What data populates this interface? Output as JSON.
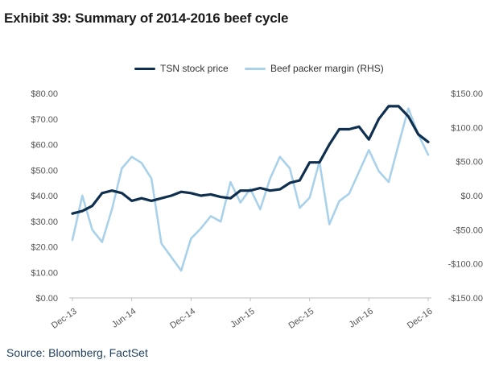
{
  "title": "Exhibit 39: Summary of 2014-2016 beef cycle",
  "source": "Source: Bloomberg, FactSet",
  "chart_data": {
    "type": "line",
    "x": [
      "Dec-13",
      "Jan-14",
      "Feb-14",
      "Mar-14",
      "Apr-14",
      "May-14",
      "Jun-14",
      "Jul-14",
      "Aug-14",
      "Sep-14",
      "Oct-14",
      "Nov-14",
      "Dec-14",
      "Jan-15",
      "Feb-15",
      "Mar-15",
      "Apr-15",
      "May-15",
      "Jun-15",
      "Jul-15",
      "Aug-15",
      "Sep-15",
      "Oct-15",
      "Nov-15",
      "Dec-15",
      "Jan-16",
      "Feb-16",
      "Mar-16",
      "Apr-16",
      "May-16",
      "Jun-16",
      "Jul-16",
      "Aug-16",
      "Sep-16",
      "Oct-16",
      "Nov-16",
      "Dec-16"
    ],
    "xticks": [
      "Dec-13",
      "Jun-14",
      "Dec-14",
      "Jun-15",
      "Dec-15",
      "Jun-16",
      "Dec-16"
    ],
    "series": [
      {
        "name": "TSN stock price",
        "axis": "left",
        "color": "#0f2f4f",
        "values": [
          33,
          34,
          36,
          41,
          42,
          41,
          38,
          39,
          38,
          39,
          40,
          41.5,
          41,
          40,
          40.5,
          39.5,
          39,
          42,
          42,
          43,
          42,
          42.5,
          45,
          46,
          53,
          53,
          60,
          66,
          66,
          67,
          62,
          70,
          75,
          75,
          71,
          64,
          61
        ]
      },
      {
        "name": "Beef packer margin (RHS)",
        "axis": "right",
        "color": "#a9d2ea",
        "values": [
          -65,
          0,
          -50,
          -68,
          -20,
          40,
          57,
          48,
          25,
          -70,
          -90,
          -110,
          -63,
          -48,
          -30,
          -38,
          20,
          -10,
          10,
          -20,
          25,
          57,
          40,
          -18,
          -3,
          50,
          -42,
          -8,
          3,
          35,
          67,
          36,
          20,
          75,
          128,
          90,
          60
        ]
      }
    ],
    "left_axis": {
      "ylim": [
        0,
        80
      ],
      "ticks": [
        "$0.00",
        "$10.00",
        "$20.00",
        "$30.00",
        "$40.00",
        "$50.00",
        "$60.00",
        "$70.00",
        "$80.00"
      ]
    },
    "right_axis": {
      "ylim": [
        -150,
        150
      ],
      "ticks": [
        "-$150.00",
        "-$100.00",
        "-$50.00",
        "$0.00",
        "$50.00",
        "$100.00",
        "$150.00"
      ]
    },
    "legend": "top-center",
    "grid": false
  }
}
